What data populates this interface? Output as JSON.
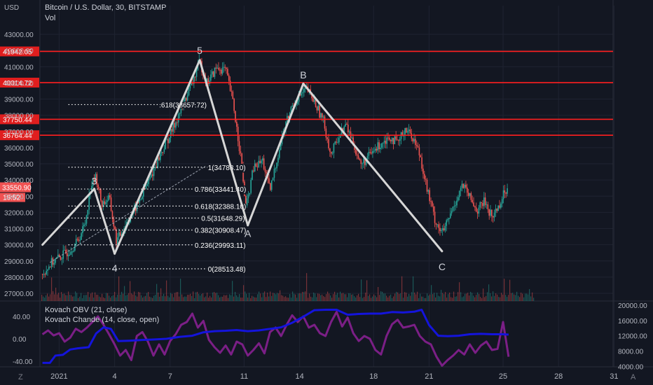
{
  "header": {
    "symbol_title": "Bitcoin / U.S. Dollar, 30, BITSTAMP",
    "volume_label": "Vol",
    "currency_label": "USD"
  },
  "indicators": {
    "obv_label": "Kovach OBV (21, close)",
    "chande_label": "Kovach Chande (14, close, open)"
  },
  "bottom_bar": {
    "left_glyph": "Z",
    "right_glyph": "A"
  },
  "colors": {
    "background": "#131722",
    "bull": "#26a69a",
    "bear": "#ef5350",
    "resistance": "#ff1f1f",
    "wave_line": "#d6d6d6",
    "obv": "#1414dc",
    "chande": "#7b1f86"
  },
  "chart_data": [
    {
      "type": "line",
      "title": "Bitcoin / U.S. Dollar, 30, BITSTAMP",
      "y_axis": {
        "range": [
          26400,
          43400
        ],
        "ticks": [
          27000,
          28000,
          29000,
          30000,
          31000,
          32000,
          33000,
          34000,
          35000,
          36000,
          37000,
          38000,
          39000,
          40000,
          41000,
          42000,
          43000
        ],
        "tick_labels": [
          "27000.00",
          "28000.00",
          "29000.00",
          "30000.00",
          "31000.00",
          "32000.00",
          "33000.00",
          "34000.00",
          "35000.00",
          "36000.00",
          "37000.00",
          "38000.00",
          "39000.00",
          "40000.00",
          "41000.00",
          "42000.00",
          "43000.00"
        ]
      },
      "x_axis": {
        "ticks": [
          {
            "label": "2021",
            "day": 1
          },
          {
            "label": "4",
            "day": 4
          },
          {
            "label": "7",
            "day": 7
          },
          {
            "label": "11",
            "day": 11
          },
          {
            "label": "14",
            "day": 14
          },
          {
            "label": "18",
            "day": 18
          },
          {
            "label": "21",
            "day": 21
          },
          {
            "label": "25",
            "day": 25
          },
          {
            "label": "28",
            "day": 28
          },
          {
            "label": "31",
            "day": 31
          }
        ]
      },
      "horizontal_levels": [
        {
          "value": 41942.05,
          "label": "41942.05"
        },
        {
          "value": 40014.72,
          "label": "40014.72"
        },
        {
          "value": 37750.44,
          "label": "37750.44"
        },
        {
          "value": 36764.44,
          "label": "36764.44"
        }
      ],
      "price_badges": [
        {
          "label": "33550.90",
          "value": 33550.9
        },
        {
          "label": "16:52",
          "value": 33000
        }
      ],
      "price_path": [
        {
          "day": 0.1,
          "price": 28200
        },
        {
          "day": 0.6,
          "price": 28900
        },
        {
          "day": 1.0,
          "price": 29200
        },
        {
          "day": 1.5,
          "price": 29600
        },
        {
          "day": 2.0,
          "price": 30200
        },
        {
          "day": 2.4,
          "price": 31300
        },
        {
          "day": 2.7,
          "price": 33600
        },
        {
          "day": 3.0,
          "price": 34200
        },
        {
          "day": 3.3,
          "price": 32500
        },
        {
          "day": 3.7,
          "price": 32900
        },
        {
          "day": 4.1,
          "price": 30200
        },
        {
          "day": 4.6,
          "price": 31300
        },
        {
          "day": 5.2,
          "price": 32400
        },
        {
          "day": 5.8,
          "price": 33800
        },
        {
          "day": 6.4,
          "price": 35400
        },
        {
          "day": 7.0,
          "price": 36800
        },
        {
          "day": 7.6,
          "price": 38400
        },
        {
          "day": 8.2,
          "price": 40000
        },
        {
          "day": 8.6,
          "price": 41300
        },
        {
          "day": 9.0,
          "price": 40000
        },
        {
          "day": 9.5,
          "price": 40900
        },
        {
          "day": 10.0,
          "price": 40800
        },
        {
          "day": 10.4,
          "price": 38800
        },
        {
          "day": 10.8,
          "price": 35600
        },
        {
          "day": 11.1,
          "price": 32200
        },
        {
          "day": 11.5,
          "price": 34700
        },
        {
          "day": 12.0,
          "price": 35200
        },
        {
          "day": 12.4,
          "price": 33300
        },
        {
          "day": 12.8,
          "price": 35400
        },
        {
          "day": 13.2,
          "price": 37300
        },
        {
          "day": 13.6,
          "price": 38600
        },
        {
          "day": 14.0,
          "price": 39200
        },
        {
          "day": 14.4,
          "price": 39600
        },
        {
          "day": 14.9,
          "price": 38600
        },
        {
          "day": 15.3,
          "price": 37600
        },
        {
          "day": 15.7,
          "price": 35500
        },
        {
          "day": 16.1,
          "price": 36700
        },
        {
          "day": 16.5,
          "price": 37400
        },
        {
          "day": 16.9,
          "price": 36300
        },
        {
          "day": 17.3,
          "price": 34900
        },
        {
          "day": 17.7,
          "price": 35400
        },
        {
          "day": 18.1,
          "price": 35900
        },
        {
          "day": 18.5,
          "price": 36400
        },
        {
          "day": 18.9,
          "price": 36700
        },
        {
          "day": 19.3,
          "price": 36200
        },
        {
          "day": 19.7,
          "price": 37200
        },
        {
          "day": 20.1,
          "price": 36700
        },
        {
          "day": 20.5,
          "price": 35600
        },
        {
          "day": 20.9,
          "price": 33400
        },
        {
          "day": 21.3,
          "price": 31600
        },
        {
          "day": 21.7,
          "price": 30700
        },
        {
          "day": 22.0,
          "price": 31400
        },
        {
          "day": 22.4,
          "price": 32600
        },
        {
          "day": 22.8,
          "price": 33700
        },
        {
          "day": 23.2,
          "price": 32900
        },
        {
          "day": 23.6,
          "price": 32100
        },
        {
          "day": 24.0,
          "price": 32700
        },
        {
          "day": 24.4,
          "price": 31700
        },
        {
          "day": 24.8,
          "price": 32500
        },
        {
          "day": 25.1,
          "price": 33300
        },
        {
          "day": 25.3,
          "price": 33550
        }
      ],
      "wave_lines": [
        {
          "from": {
            "day": 0.1,
            "price": 30000
          },
          "to": {
            "day": 2.9,
            "price": 33450
          }
        },
        {
          "from": {
            "day": 2.9,
            "price": 33450
          },
          "to": {
            "day": 4.0,
            "price": 29450
          }
        },
        {
          "from": {
            "day": 4.0,
            "price": 29450
          },
          "to": {
            "day": 8.6,
            "price": 41400
          }
        },
        {
          "from": {
            "day": 8.6,
            "price": 41400
          },
          "to": {
            "day": 11.2,
            "price": 31200
          }
        },
        {
          "from": {
            "day": 11.2,
            "price": 31200
          },
          "to": {
            "day": 14.2,
            "price": 39950
          }
        },
        {
          "from": {
            "day": 14.2,
            "price": 39950
          },
          "to": {
            "day": 21.7,
            "price": 29600
          }
        }
      ],
      "wave_labels": [
        {
          "label": "3",
          "day": 2.9,
          "price": 33950
        },
        {
          "label": "4",
          "day": 4.0,
          "price": 28550
        },
        {
          "label": "5",
          "day": 8.6,
          "price": 42000
        },
        {
          "label": "A",
          "day": 11.2,
          "price": 30700
        },
        {
          "label": "B",
          "day": 14.2,
          "price": 40500
        },
        {
          "label": "C",
          "day": 21.7,
          "price": 28650
        }
      ],
      "fib_levels": [
        {
          "ratio_label": ".618",
          "value": 38657.72,
          "label": ".618(38657.72)",
          "day_start": 1.5,
          "day_end": 8.9
        },
        {
          "ratio_label": "1",
          "value": 34788.1,
          "label": "1(34788.10)",
          "day_start": 1.5,
          "day_end": 11.0
        },
        {
          "ratio_label": "0.786",
          "value": 33441.4,
          "label": "0.786(33441.40)",
          "day_start": 1.5,
          "day_end": 11.0
        },
        {
          "ratio_label": "0.618",
          "value": 32388.1,
          "label": "0.618(32388.10)",
          "day_start": 1.5,
          "day_end": 11.0
        },
        {
          "ratio_label": "0.5",
          "value": 31648.29,
          "label": "0.5(31648.29)",
          "day_start": 1.5,
          "day_end": 11.0
        },
        {
          "ratio_label": "0.382",
          "value": 30908.47,
          "label": "0.382(30908.47)",
          "day_start": 1.5,
          "day_end": 11.0
        },
        {
          "ratio_label": "0.236",
          "value": 29993.11,
          "label": "0.236(29993.11)",
          "day_start": 1.5,
          "day_end": 11.0
        },
        {
          "ratio_label": "0",
          "value": 28513.48,
          "label": "0(28513.48)",
          "day_start": 1.5,
          "day_end": 11.0
        }
      ],
      "trend_dashed": {
        "from": {
          "day": 0.5,
          "price": 28900
        },
        "to": {
          "day": 8.9,
          "price": 34850
        }
      }
    },
    {
      "type": "line",
      "title": "",
      "left_axis": {
        "ticks": [
          40,
          0,
          -40
        ],
        "tick_labels": [
          "40.00",
          "0.00",
          "-40.00"
        ],
        "range": [
          -55,
          60
        ]
      },
      "right_axis": {
        "ticks": [
          20000,
          16000,
          12000,
          8000,
          4000
        ],
        "tick_labels": [
          "20000.00",
          "16000.00",
          "12000.00",
          "8000.00",
          "4000.00"
        ],
        "range": [
          3000,
          21500
        ]
      },
      "series": [
        {
          "name": "Kovach OBV (21, close)",
          "axis": "right",
          "x": [
            0.1,
            0.5,
            0.8,
            1.2,
            1.6,
            2.0,
            2.6,
            3.0,
            3.4,
            3.8,
            4.2,
            4.8,
            5.5,
            6.0,
            6.8,
            7.5,
            8.2,
            8.8,
            9.4,
            10.0,
            10.6,
            11.2,
            11.8,
            12.4,
            13.0,
            13.6,
            14.2,
            14.8,
            15.4,
            16.0,
            16.6,
            17.2,
            17.8,
            18.4,
            19.0,
            19.6,
            20.2,
            20.6,
            21.0,
            21.5,
            22.0,
            22.6,
            23.2,
            23.8,
            24.4,
            25.0,
            25.3
          ],
          "values": [
            4900,
            4900,
            6800,
            7000,
            8400,
            8700,
            9000,
            12600,
            14200,
            13800,
            10600,
            10700,
            10900,
            11000,
            11200,
            11700,
            12000,
            12900,
            13200,
            13300,
            13500,
            13200,
            13400,
            13800,
            14200,
            15400,
            17000,
            18700,
            18800,
            18800,
            17500,
            17700,
            17800,
            17800,
            18200,
            18100,
            18300,
            18800,
            14800,
            12000,
            11900,
            12000,
            12400,
            12500,
            12400,
            12400,
            12300
          ]
        },
        {
          "name": "Kovach Chande (14, close, open)",
          "axis": "left",
          "x": [
            0.1,
            0.4,
            0.7,
            1.0,
            1.3,
            1.6,
            1.9,
            2.2,
            2.5,
            2.8,
            3.1,
            3.4,
            3.7,
            4.0,
            4.3,
            4.6,
            4.9,
            5.2,
            5.5,
            5.8,
            6.1,
            6.4,
            6.7,
            7.0,
            7.3,
            7.6,
            7.9,
            8.2,
            8.5,
            8.8,
            9.1,
            9.4,
            9.7,
            10.0,
            10.3,
            10.6,
            10.9,
            11.2,
            11.5,
            11.8,
            12.1,
            12.4,
            12.7,
            13.0,
            13.3,
            13.6,
            13.9,
            14.2,
            14.5,
            14.8,
            15.1,
            15.4,
            15.7,
            16.0,
            16.3,
            16.6,
            16.9,
            17.2,
            17.5,
            17.8,
            18.1,
            18.4,
            18.7,
            19.0,
            19.3,
            19.6,
            19.9,
            20.2,
            20.5,
            20.8,
            21.1,
            21.4,
            21.7,
            22.0,
            22.3,
            22.6,
            22.9,
            23.2,
            23.5,
            23.8,
            24.1,
            24.4,
            24.7,
            25.0,
            25.3
          ],
          "values": [
            8,
            15,
            6,
            10,
            -5,
            2,
            18,
            12,
            20,
            30,
            40,
            25,
            8,
            -10,
            -30,
            -20,
            -38,
            5,
            12,
            -5,
            -30,
            -10,
            -28,
            -4,
            8,
            25,
            30,
            45,
            20,
            32,
            -2,
            -15,
            -25,
            -12,
            -28,
            -5,
            -10,
            -30,
            -20,
            -8,
            -26,
            12,
            20,
            5,
            25,
            42,
            30,
            40,
            20,
            25,
            10,
            5,
            30,
            48,
            22,
            38,
            10,
            -4,
            5,
            0,
            -20,
            -28,
            5,
            26,
            34,
            20,
            22,
            25,
            5,
            -5,
            -10,
            -32,
            -48,
            -38,
            -30,
            -20,
            -28,
            -10,
            -25,
            -12,
            -5,
            -20,
            -18,
            30,
            -32
          ]
        }
      ]
    }
  ]
}
